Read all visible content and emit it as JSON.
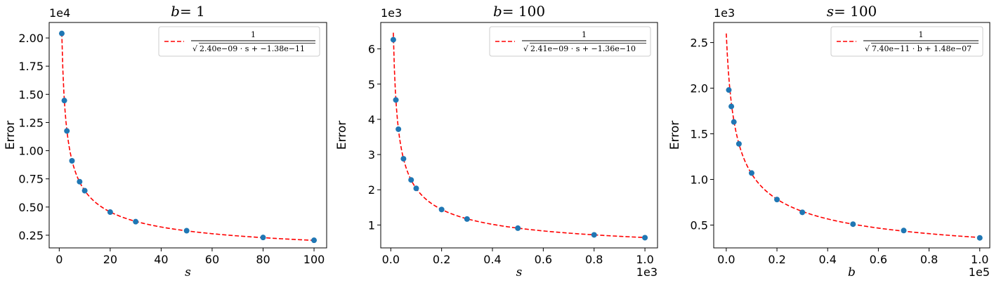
{
  "chart_data": [
    {
      "type": "scatter",
      "title": "b = 1",
      "title_var": "b",
      "title_val": "= 1",
      "xlabel": "s",
      "ylabel": "Error",
      "y_offset": "1e4",
      "x_offset": "",
      "xlim": [
        -3.95,
        104.95
      ],
      "ylim": [
        0.1375,
        2.1375
      ],
      "xticks": [
        0,
        20,
        40,
        60,
        80,
        100
      ],
      "xtick_labels": [
        "0",
        "20",
        "40",
        "60",
        "80",
        "100"
      ],
      "yticks": [
        0.25,
        0.5,
        0.75,
        1.0,
        1.25,
        1.5,
        1.75,
        2.0
      ],
      "ytick_labels": [
        "0.25",
        "0.50",
        "0.75",
        "1.00",
        "1.25",
        "1.50",
        "1.75",
        "2.00"
      ],
      "points": {
        "x": [
          1,
          2,
          3,
          5,
          8,
          10,
          20,
          30,
          50,
          80,
          100
        ],
        "y": [
          2.04,
          1.445,
          1.175,
          0.91,
          0.725,
          0.645,
          0.455,
          0.37,
          0.29,
          0.23,
          0.205
        ]
      },
      "fit": {
        "a": 2.4e-09,
        "c": -1.38e-11,
        "scale": 10000.0,
        "x_scale": 1,
        "x_from": 1,
        "x_to": 100
      },
      "legend": {
        "numerator": "1",
        "denominator": "2.40e−09 · s + −1.38e−11",
        "position": "top-right"
      },
      "colors": {
        "points": "#1f77b4",
        "fit": "#ff0000"
      }
    },
    {
      "type": "scatter",
      "title": "b = 100",
      "title_var": "b",
      "title_val": "= 100",
      "xlabel": "s",
      "ylabel": "Error",
      "y_offset": "1e3",
      "x_offset": "1e3",
      "xlim": [
        -0.0395,
        1.0495
      ],
      "ylim": [
        0.35,
        6.75
      ],
      "xticks": [
        0,
        0.2,
        0.4,
        0.6,
        0.8,
        1.0
      ],
      "xtick_labels": [
        "0.0",
        "0.2",
        "0.4",
        "0.6",
        "0.8",
        "1.0"
      ],
      "yticks": [
        1,
        2,
        3,
        4,
        5,
        6
      ],
      "ytick_labels": [
        "1",
        "2",
        "3",
        "4",
        "5",
        "6"
      ],
      "points": {
        "x": [
          0.01,
          0.02,
          0.03,
          0.05,
          0.08,
          0.1,
          0.2,
          0.3,
          0.5,
          0.8,
          1.0
        ],
        "y": [
          6.26,
          4.55,
          3.72,
          2.88,
          2.28,
          2.04,
          1.44,
          1.17,
          0.91,
          0.72,
          0.64
        ]
      },
      "fit": {
        "a": 2.41e-09,
        "c": -1.36e-10,
        "scale": 1000.0,
        "x_scale": 1000,
        "x_from": 0.01,
        "x_to": 1.0
      },
      "legend": {
        "numerator": "1",
        "denominator": "2.41e−09 · s + −1.36e−10",
        "position": "top-right"
      },
      "colors": {
        "points": "#1f77b4",
        "fit": "#ff0000"
      }
    },
    {
      "type": "scatter",
      "title": "s = 100",
      "title_var": "s",
      "title_val": "= 100",
      "xlabel": "b",
      "ylabel": "Error",
      "y_offset": "1e3",
      "x_offset": "1e5",
      "xlim": [
        -0.0495,
        1.0395
      ],
      "ylim": [
        0.25,
        2.72
      ],
      "xticks": [
        0,
        0.2,
        0.4,
        0.6,
        0.8,
        1.0
      ],
      "xtick_labels": [
        "0.0",
        "0.2",
        "0.4",
        "0.6",
        "0.8",
        "1.0"
      ],
      "yticks": [
        0.5,
        1.0,
        1.5,
        2.0,
        2.5
      ],
      "ytick_labels": [
        "0.5",
        "1.0",
        "1.5",
        "2.0",
        "2.5"
      ],
      "points": {
        "x": [
          0.01,
          0.02,
          0.03,
          0.05,
          0.1,
          0.2,
          0.3,
          0.5,
          0.7,
          1.0
        ],
        "y": [
          1.98,
          1.8,
          1.63,
          1.39,
          1.07,
          0.78,
          0.64,
          0.51,
          0.44,
          0.36
        ]
      },
      "fit": {
        "a": 7.4e-11,
        "c": 1.48e-07,
        "scale": 1000.0,
        "x_scale": 100000,
        "x_from": 0.0,
        "x_to": 1.0
      },
      "legend": {
        "numerator": "1",
        "denominator": "7.40e−11 · b + 1.48e−07",
        "position": "top-right"
      },
      "colors": {
        "points": "#1f77b4",
        "fit": "#ff0000"
      }
    }
  ]
}
